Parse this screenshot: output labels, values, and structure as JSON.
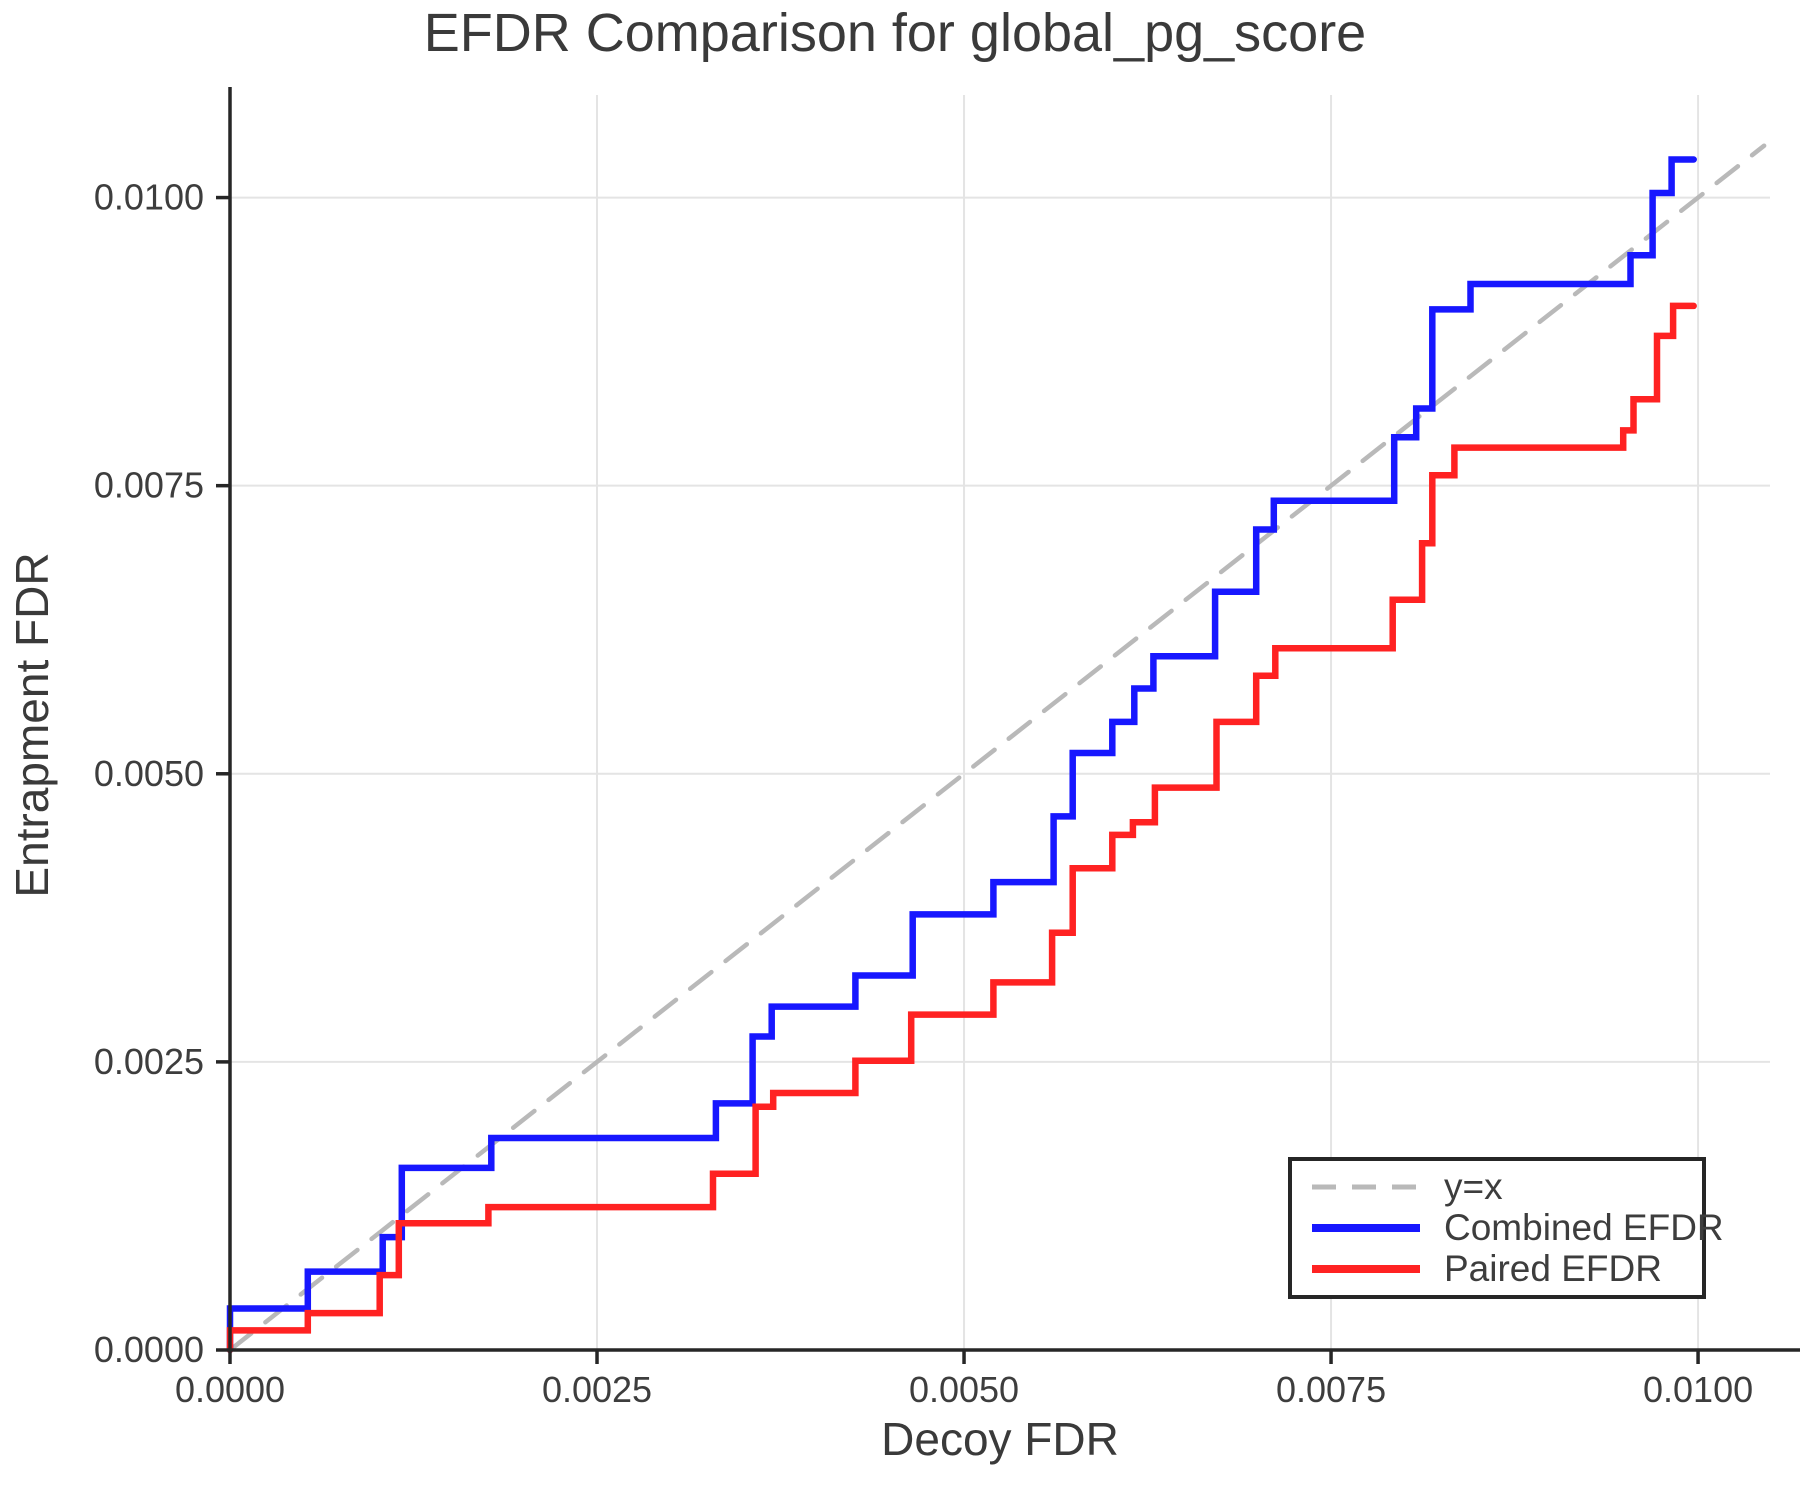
{
  "title": "EFDR Comparison for global_pg_score",
  "legend": {
    "items": [
      {
        "label": "y=x",
        "style": "dashed",
        "color": "#b9b9b9"
      },
      {
        "label": "Combined EFDR",
        "style": "solid",
        "color": "#1717ff"
      },
      {
        "label": "Paired EFDR",
        "style": "solid",
        "color": "#ff2222"
      }
    ]
  },
  "chart_data": {
    "type": "line",
    "subtype": "step-post",
    "title": "EFDR Comparison for global_pg_score",
    "xlabel": "Decoy FDR",
    "ylabel": "Entrapment FDR",
    "xlim": [
      0,
      0.01049
    ],
    "ylim": [
      0,
      0.01089
    ],
    "xticks": [
      0.0,
      0.0025,
      0.005,
      0.0075,
      0.01
    ],
    "yticks": [
      0.0,
      0.0025,
      0.005,
      0.0075,
      0.01
    ],
    "xtick_labels": [
      "0.0000",
      "0.0025",
      "0.0050",
      "0.0075",
      "0.0100"
    ],
    "ytick_labels": [
      "0.0000",
      "0.0025",
      "0.0050",
      "0.0075",
      "0.0100"
    ],
    "grid": true,
    "grid_color": "#e4e4e4",
    "axis_color": "#262626",
    "text_color": "#3d3d3d",
    "legend_position": "lower right",
    "reference_line": {
      "label": "y=x",
      "style": "dashed",
      "color": "#b9b9b9",
      "from": [
        0,
        0
      ],
      "to": [
        0.01045,
        0.01045
      ]
    },
    "series": [
      {
        "name": "Combined EFDR",
        "color": "#1717ff",
        "step": "post",
        "x_end": 0.00997,
        "points": [
          [
            0.0,
            0.00036
          ],
          [
            0.00053,
            0.00068
          ],
          [
            0.00104,
            0.00098
          ],
          [
            0.00117,
            0.00158
          ],
          [
            0.00178,
            0.00184
          ],
          [
            0.00331,
            0.00214
          ],
          [
            0.00356,
            0.00272
          ],
          [
            0.00369,
            0.00298
          ],
          [
            0.00426,
            0.00325
          ],
          [
            0.00465,
            0.00378
          ],
          [
            0.0052,
            0.00406
          ],
          [
            0.00561,
            0.00463
          ],
          [
            0.00574,
            0.00518
          ],
          [
            0.00601,
            0.00545
          ],
          [
            0.00616,
            0.00574
          ],
          [
            0.00629,
            0.00602
          ],
          [
            0.00671,
            0.00658
          ],
          [
            0.00699,
            0.00712
          ],
          [
            0.00711,
            0.00737
          ],
          [
            0.00793,
            0.00792
          ],
          [
            0.00808,
            0.00817
          ],
          [
            0.00819,
            0.00903
          ],
          [
            0.00845,
            0.00925
          ],
          [
            0.00954,
            0.0095
          ],
          [
            0.00969,
            0.01004
          ],
          [
            0.00982,
            0.01033
          ]
        ]
      },
      {
        "name": "Paired EFDR",
        "color": "#ff2222",
        "step": "post",
        "x_end": 0.00997,
        "points": [
          [
            0.0,
            0.00017
          ],
          [
            0.00053,
            0.00032
          ],
          [
            0.00102,
            0.00065
          ],
          [
            0.00115,
            0.0011
          ],
          [
            0.00176,
            0.00124
          ],
          [
            0.00329,
            0.00153
          ],
          [
            0.00358,
            0.00211
          ],
          [
            0.0037,
            0.00223
          ],
          [
            0.00426,
            0.00251
          ],
          [
            0.00464,
            0.00291
          ],
          [
            0.0052,
            0.00319
          ],
          [
            0.0056,
            0.00362
          ],
          [
            0.00574,
            0.00418
          ],
          [
            0.00601,
            0.00447
          ],
          [
            0.00615,
            0.00458
          ],
          [
            0.0063,
            0.00488
          ],
          [
            0.00672,
            0.00545
          ],
          [
            0.00699,
            0.00585
          ],
          [
            0.00712,
            0.00609
          ],
          [
            0.00792,
            0.00651
          ],
          [
            0.00812,
            0.007
          ],
          [
            0.00819,
            0.00759
          ],
          [
            0.00834,
            0.00783
          ],
          [
            0.00949,
            0.00798
          ],
          [
            0.00956,
            0.00825
          ],
          [
            0.00972,
            0.0088
          ],
          [
            0.00983,
            0.00906
          ]
        ]
      }
    ]
  }
}
